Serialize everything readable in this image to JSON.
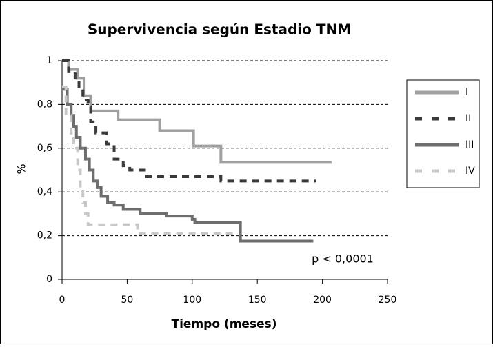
{
  "chart_data": {
    "type": "step",
    "title": "Supervivencia según Estadio TNM",
    "xlabel": "Tiempo (meses)",
    "ylabel": "%",
    "annotation": "p < 0,0001",
    "xlim": [
      0,
      250
    ],
    "xticks": [
      0,
      50,
      100,
      150,
      200,
      250
    ],
    "ylim": [
      0,
      1
    ],
    "yticks": [
      0,
      {
        "value": 0.2,
        "label": "0,2"
      },
      {
        "value": 0.4,
        "label": "0,4"
      },
      {
        "value": 0.6,
        "label": "0,6"
      },
      {
        "value": 0.8,
        "label": "0,8"
      },
      1
    ],
    "grid": true,
    "legend": "right",
    "series": [
      {
        "name": "I",
        "color": "#a0a0a0",
        "dash": false,
        "x": [
          0,
          5,
          12,
          17,
          22,
          43,
          75,
          101,
          122,
          207
        ],
        "values": [
          1,
          0.96,
          0.92,
          0.84,
          0.77,
          0.73,
          0.68,
          0.61,
          0.535,
          0.535
        ]
      },
      {
        "name": "II",
        "color": "#3a3a3a",
        "dash": true,
        "x": [
          0,
          5,
          10,
          13,
          16,
          20,
          22,
          26,
          34,
          40,
          47,
          52,
          65,
          122,
          195
        ],
        "values": [
          1,
          0.95,
          0.91,
          0.87,
          0.82,
          0.79,
          0.72,
          0.67,
          0.62,
          0.55,
          0.52,
          0.5,
          0.47,
          0.45,
          0.45
        ]
      },
      {
        "name": "III",
        "color": "#6e6e6e",
        "dash": false,
        "x": [
          0,
          4,
          7,
          9,
          11,
          14,
          18,
          21,
          24,
          27,
          30,
          35,
          40,
          47,
          60,
          80,
          100,
          102,
          137,
          193
        ],
        "values": [
          0.87,
          0.8,
          0.75,
          0.7,
          0.65,
          0.6,
          0.55,
          0.5,
          0.45,
          0.42,
          0.38,
          0.35,
          0.34,
          0.32,
          0.3,
          0.29,
          0.275,
          0.26,
          0.175,
          0.175
        ]
      },
      {
        "name": "IV",
        "color": "#c8c8c8",
        "dash": true,
        "x": [
          0,
          3,
          7,
          9,
          12,
          14,
          16,
          18,
          20,
          58,
          135
        ],
        "values": [
          0.88,
          0.75,
          0.65,
          0.6,
          0.5,
          0.42,
          0.35,
          0.3,
          0.25,
          0.21,
          0.21
        ]
      }
    ]
  }
}
